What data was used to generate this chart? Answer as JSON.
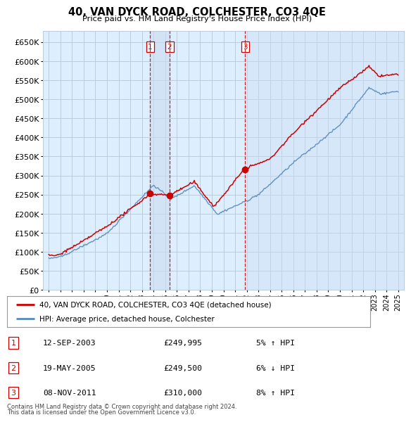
{
  "title": "40, VAN DYCK ROAD, COLCHESTER, CO3 4QE",
  "subtitle": "Price paid vs. HM Land Registry's House Price Index (HPI)",
  "hpi_label": "HPI: Average price, detached house, Colchester",
  "property_label": "40, VAN DYCK ROAD, COLCHESTER, CO3 4QE (detached house)",
  "footer1": "Contains HM Land Registry data © Crown copyright and database right 2024.",
  "footer2": "This data is licensed under the Open Government Licence v3.0.",
  "sales": [
    {
      "num": 1,
      "date": "12-SEP-2003",
      "price": 249995,
      "price_str": "£249,995",
      "pct": "5%",
      "dir": "↑",
      "year": 2003.71
    },
    {
      "num": 2,
      "date": "19-MAY-2005",
      "price": 249500,
      "price_str": "£249,500",
      "pct": "6%",
      "dir": "↓",
      "year": 2005.38
    },
    {
      "num": 3,
      "date": "08-NOV-2011",
      "price": 310000,
      "price_str": "£310,000",
      "pct": "8%",
      "dir": "↑",
      "year": 2011.85
    }
  ],
  "ylim": [
    0,
    680000
  ],
  "yticks": [
    0,
    50000,
    100000,
    150000,
    200000,
    250000,
    300000,
    350000,
    400000,
    450000,
    500000,
    550000,
    600000,
    650000
  ],
  "xlim_start": 1994.5,
  "xlim_end": 2025.5,
  "red_color": "#cc0000",
  "blue_color": "#5588bb",
  "chart_bg": "#ddeeff",
  "grid_color": "#bbccdd",
  "fig_bg": "#ffffff",
  "vline_color": "#cc0000",
  "shade_color": "#ccddf0"
}
